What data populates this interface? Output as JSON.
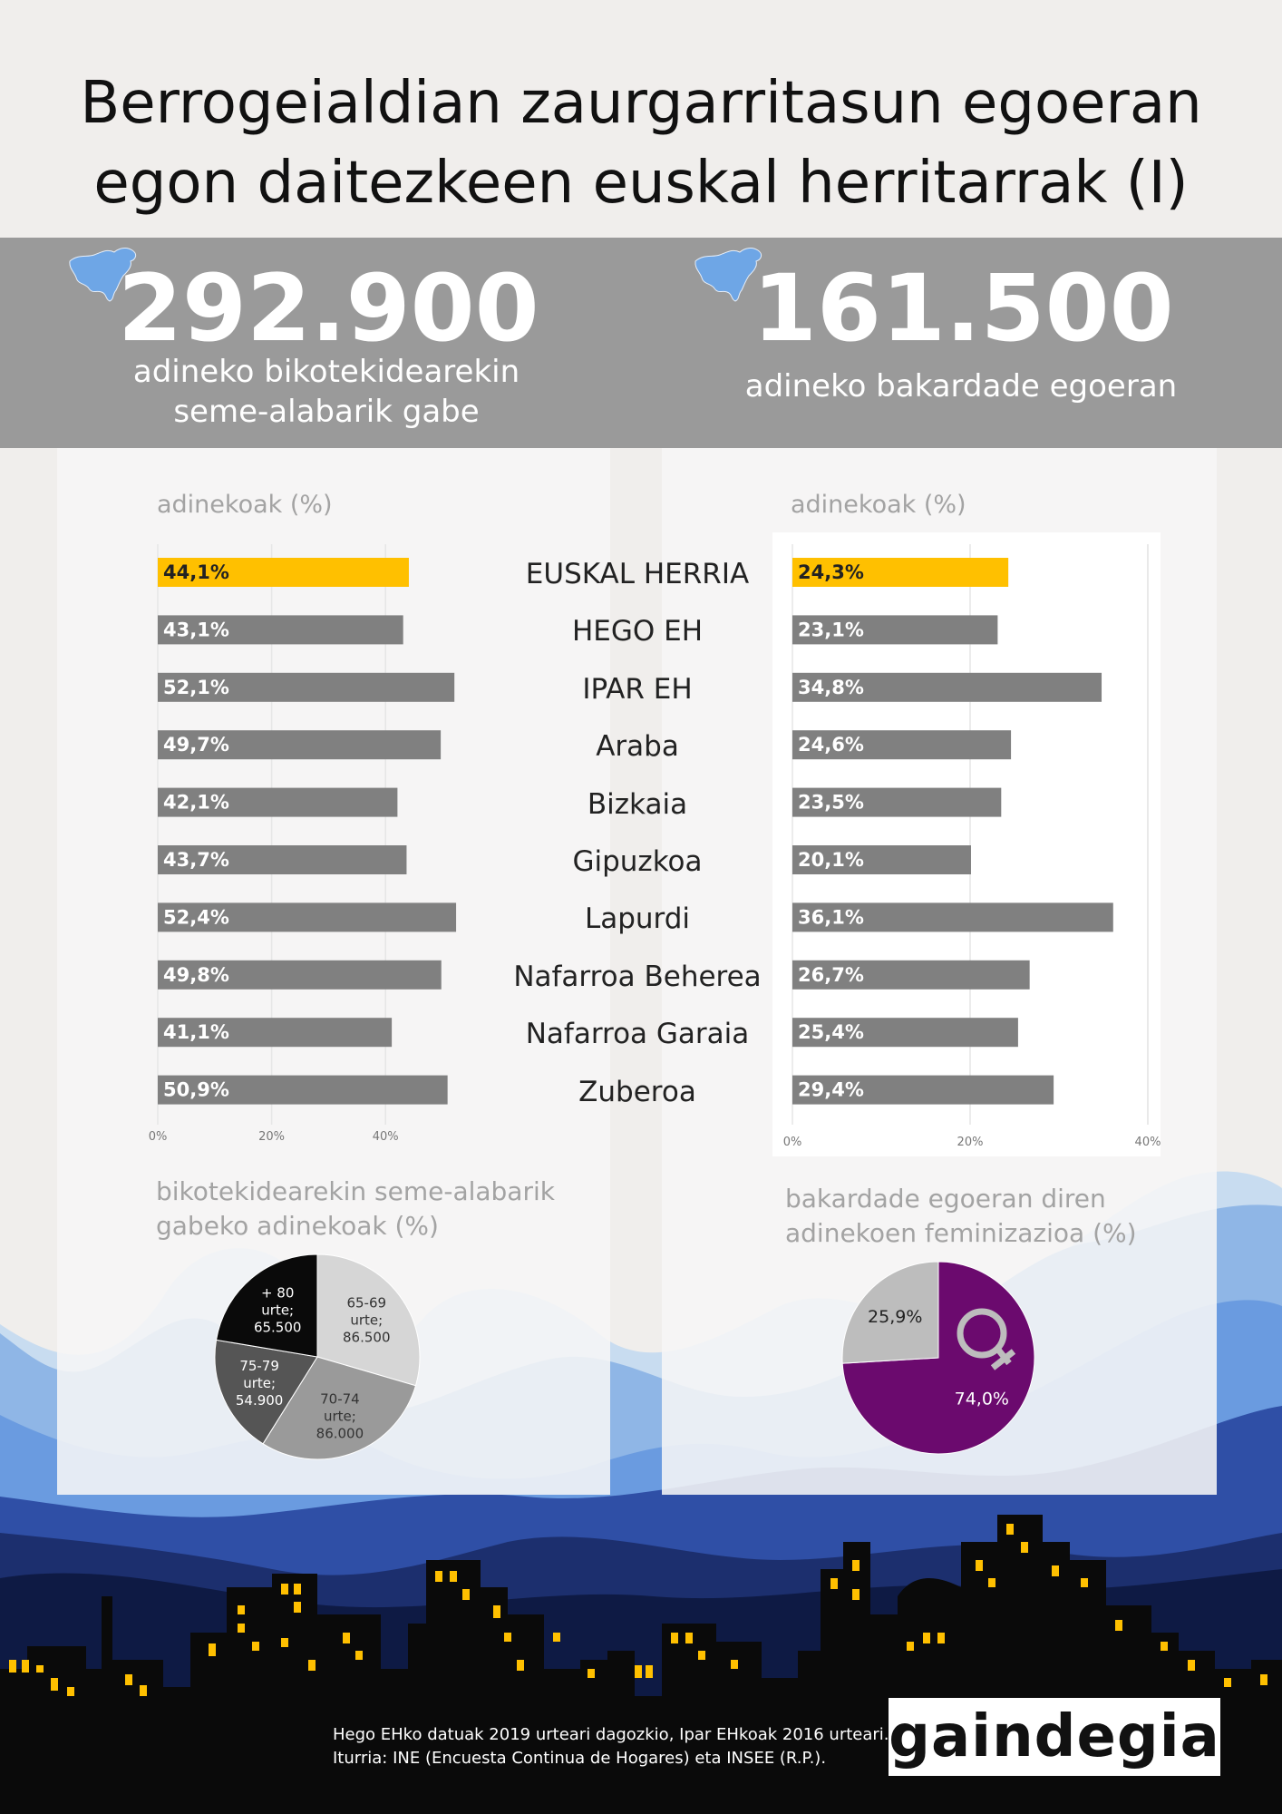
{
  "title": [
    "Berrogeialdian zaurgarritasun egoeran",
    "egon daitezkeen euskal herritarrak (I)"
  ],
  "stats": [
    {
      "number": "292.900",
      "caption": [
        "adineko bikotekidearekin",
        "seme-alabarik gabe"
      ]
    },
    {
      "number": "161.500",
      "caption": [
        "adineko bakardade egoeran"
      ]
    }
  ],
  "colors": {
    "highlight": "#ffc000",
    "bar": "#808080",
    "purple": "#6b0a6e",
    "gray_slice": "#bdbdbd",
    "banner": "#9a9a9a",
    "subtitle": "#a3a3a3"
  },
  "regions": [
    "EUSKAL HERRIA",
    "HEGO EH",
    "IPAR EH",
    "Araba",
    "Bizkaia",
    "Gipuzkoa",
    "Lapurdi",
    "Nafarroa Beherea",
    "Nafarroa Garaia",
    "Zuberoa"
  ],
  "chart_data": [
    {
      "type": "bar",
      "orientation": "horizontal",
      "subtitle": "adinekoak (%)",
      "categories": [
        "EUSKAL HERRIA",
        "HEGO EH",
        "IPAR EH",
        "Araba",
        "Bizkaia",
        "Gipuzkoa",
        "Lapurdi",
        "Nafarroa Beherea",
        "Nafarroa Garaia",
        "Zuberoa"
      ],
      "values": [
        44.1,
        43.1,
        52.1,
        49.7,
        42.1,
        43.7,
        52.4,
        49.8,
        41.1,
        50.9
      ],
      "labels": [
        "44,1%",
        "43,1%",
        "52,1%",
        "49,7%",
        "42,1%",
        "43,7%",
        "52,4%",
        "49,8%",
        "41,1%",
        "50,9%"
      ],
      "highlight_index": 0,
      "x_ticks": [
        "0%",
        "20%",
        "40%"
      ],
      "xlim": [
        0,
        52.4
      ],
      "grid": true
    },
    {
      "type": "bar",
      "orientation": "horizontal",
      "subtitle": "adinekoak (%)",
      "categories": [
        "EUSKAL HERRIA",
        "HEGO EH",
        "IPAR EH",
        "Araba",
        "Bizkaia",
        "Gipuzkoa",
        "Lapurdi",
        "Nafarroa Beherea",
        "Nafarroa Garaia",
        "Zuberoa"
      ],
      "values": [
        24.3,
        23.1,
        34.8,
        24.6,
        23.5,
        20.1,
        36.1,
        26.7,
        25.4,
        29.4
      ],
      "labels": [
        "24,3%",
        "23,1%",
        "34,8%",
        "24,6%",
        "23,5%",
        "20,1%",
        "36,1%",
        "26,7%",
        "25,4%",
        "29,4%"
      ],
      "highlight_index": 0,
      "x_ticks": [
        "0%",
        "20%",
        "40%"
      ],
      "xlim": [
        0,
        40
      ],
      "grid": true
    },
    {
      "type": "pie",
      "title": [
        "bikotekidearekin seme-alabarik",
        "gabeko adinekoak (%)"
      ],
      "slices": [
        {
          "label": [
            "65-69",
            "urte;",
            "86.500"
          ],
          "value": 86500,
          "color": "#d6d6d6",
          "text_color": "#333333"
        },
        {
          "label": [
            "70-74",
            "urte;",
            "86.000"
          ],
          "value": 86000,
          "color": "#9a9a9a",
          "text_color": "#333333"
        },
        {
          "label": [
            "75-79",
            "urte;",
            "54.900"
          ],
          "value": 54900,
          "color": "#555555",
          "text_color": "#ffffff"
        },
        {
          "label": [
            "+ 80",
            "urte;",
            "65.500"
          ],
          "value": 65500,
          "color": "#0a0a0a",
          "text_color": "#ffffff"
        }
      ]
    },
    {
      "type": "pie",
      "title": [
        "bakardade egoeran diren",
        "adinekoen feminizazioa (%)"
      ],
      "slices": [
        {
          "label": [
            "74,0%"
          ],
          "value": 74.0,
          "color": "#6b0a6e",
          "text_color": "#ffffff"
        },
        {
          "label": [
            "25,9%"
          ],
          "value": 25.9,
          "color": "#bdbdbd",
          "text_color": "#222222"
        }
      ],
      "icon": "female-symbol-icon"
    }
  ],
  "footnote": [
    "Hego EHko datuak 2019 urteari dagozkio, Ipar EHkoak 2016 urteari.",
    "Iturria: INE (Encuesta Continua de Hogares) eta INSEE (R.P.)."
  ],
  "logo_text": "gaindegia"
}
